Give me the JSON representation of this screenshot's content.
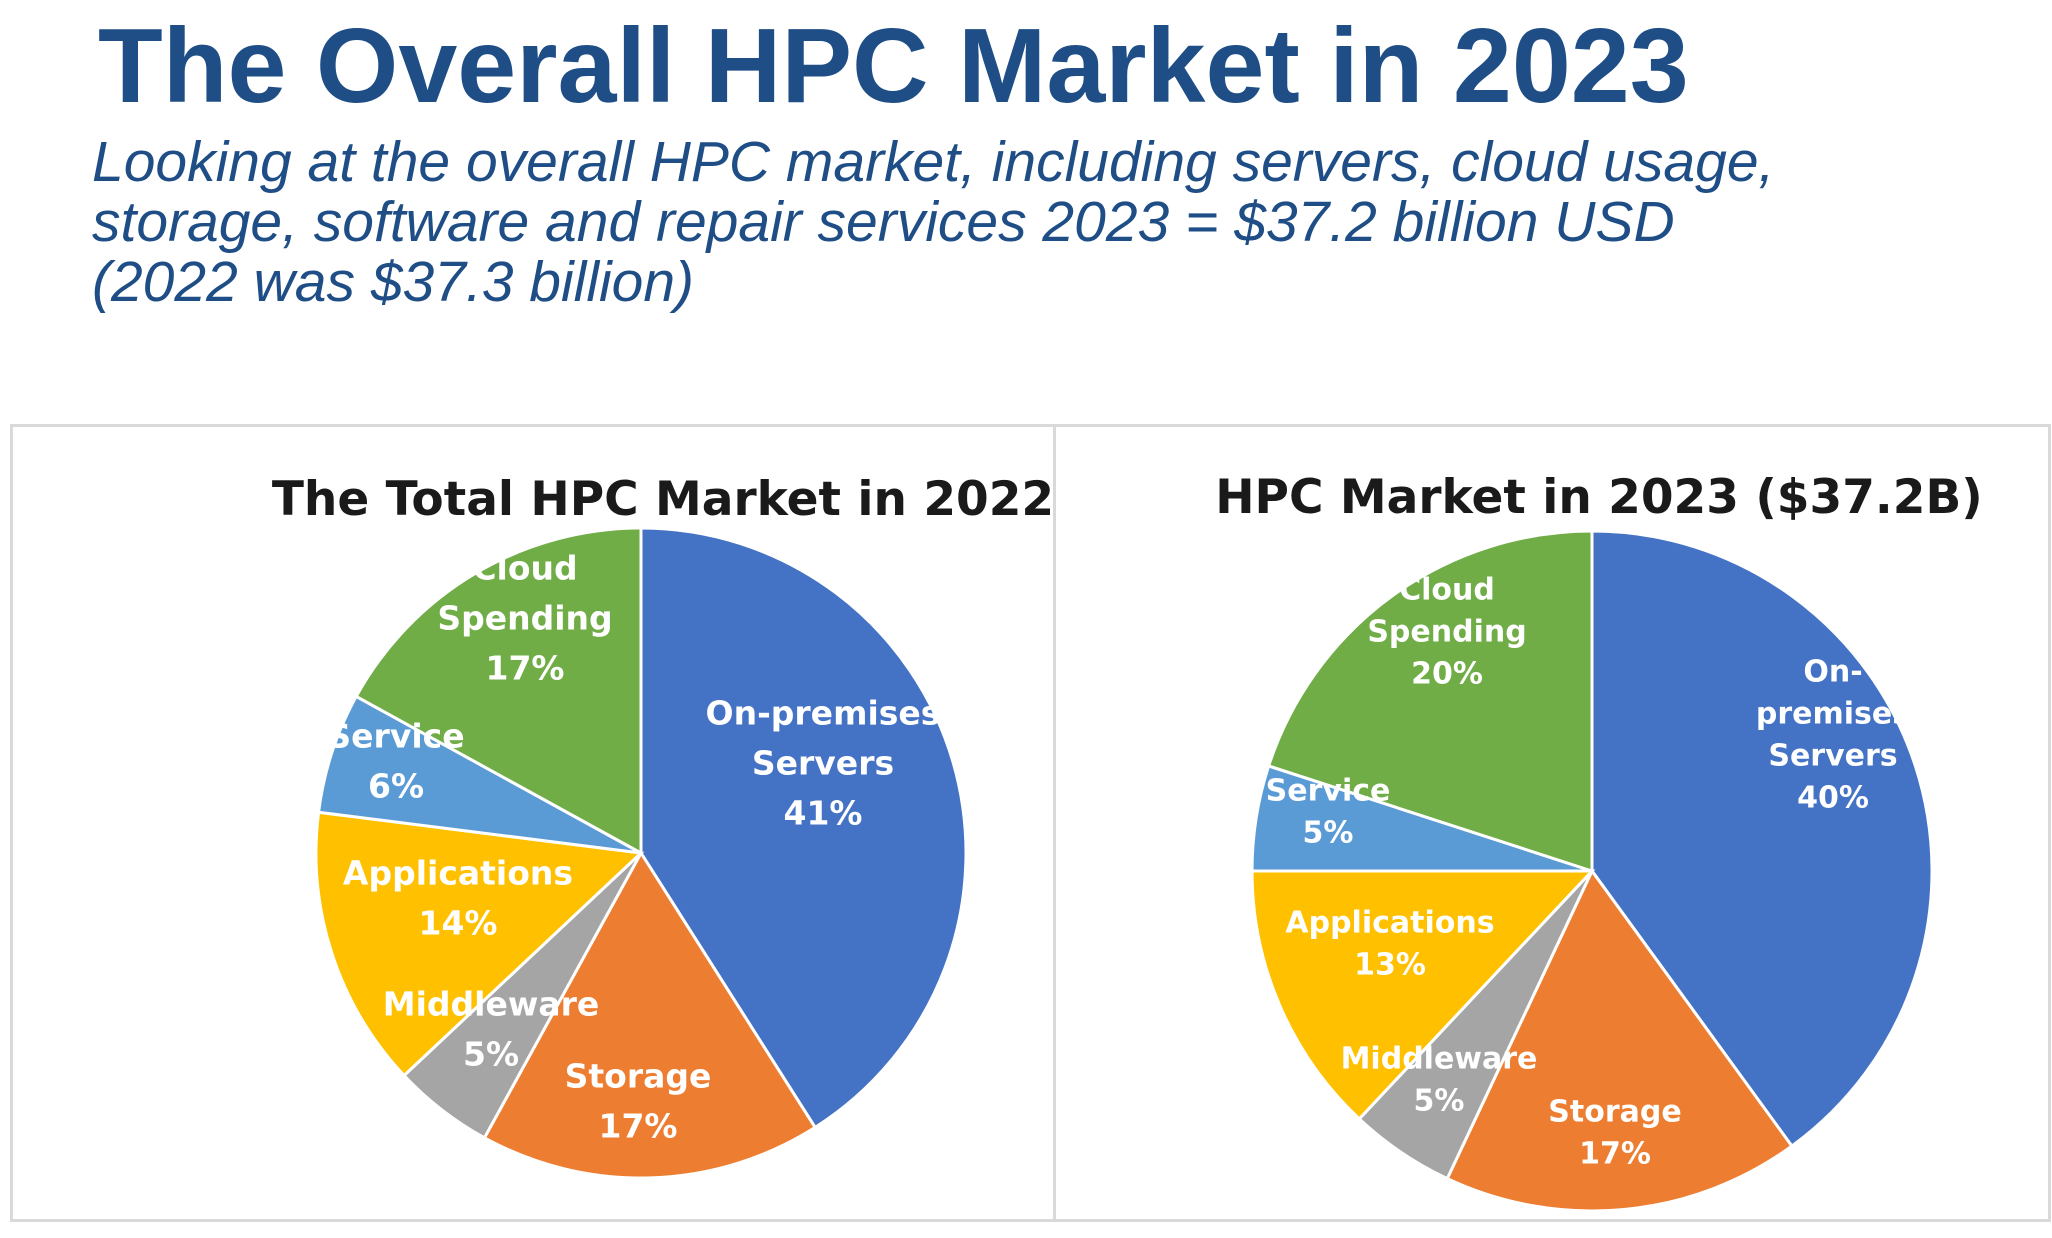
{
  "page": {
    "title": "The Overall HPC Market in 2023",
    "subtitle_lines": [
      "Looking at the overall HPC market, including servers, cloud usage,",
      "storage, software and repair services 2023 = $37.2 billion USD",
      "(2022 was $37.3 billion)"
    ]
  },
  "colors": {
    "heading": "#1f4e86",
    "on_premises_servers": "#4472c4",
    "storage": "#ed7d31",
    "middleware": "#a5a5a5",
    "applications": "#ffc000",
    "service": "#5b9bd5",
    "cloud_spending": "#70ad47"
  },
  "chart_data": [
    {
      "type": "pie",
      "title": "The Total HPC Market in 2022",
      "slices": [
        {
          "label_lines": [
            "On-premises",
            "Servers"
          ],
          "percent_label": "41%",
          "value": 41,
          "color": "#4472c4"
        },
        {
          "label_lines": [
            "Storage"
          ],
          "percent_label": "17%",
          "value": 17,
          "color": "#ed7d31"
        },
        {
          "label_lines": [
            "Middleware"
          ],
          "percent_label": "5%",
          "value": 5,
          "color": "#a5a5a5"
        },
        {
          "label_lines": [
            "Applications"
          ],
          "percent_label": "14%",
          "value": 14,
          "color": "#ffc000"
        },
        {
          "label_lines": [
            "Service"
          ],
          "percent_label": "6%",
          "value": 6,
          "color": "#5b9bd5"
        },
        {
          "label_lines": [
            "Cloud",
            "Spending"
          ],
          "percent_label": "17%",
          "value": 17,
          "color": "#70ad47"
        }
      ]
    },
    {
      "type": "pie",
      "title": "HPC Market in 2023 ($37.2B)",
      "slices": [
        {
          "label_lines": [
            "On-",
            "premises",
            "Servers"
          ],
          "percent_label": "40%",
          "value": 40,
          "color": "#4472c4"
        },
        {
          "label_lines": [
            "Storage"
          ],
          "percent_label": "17%",
          "value": 17,
          "color": "#ed7d31"
        },
        {
          "label_lines": [
            "Middleware"
          ],
          "percent_label": "5%",
          "value": 5,
          "color": "#a5a5a5"
        },
        {
          "label_lines": [
            "Applications"
          ],
          "percent_label": "13%",
          "value": 13,
          "color": "#ffc000"
        },
        {
          "label_lines": [
            "Service"
          ],
          "percent_label": "5%",
          "value": 5,
          "color": "#5b9bd5"
        },
        {
          "label_lines": [
            "Cloud",
            "Spending"
          ],
          "percent_label": "20%",
          "value": 20,
          "color": "#70ad47"
        }
      ]
    }
  ]
}
